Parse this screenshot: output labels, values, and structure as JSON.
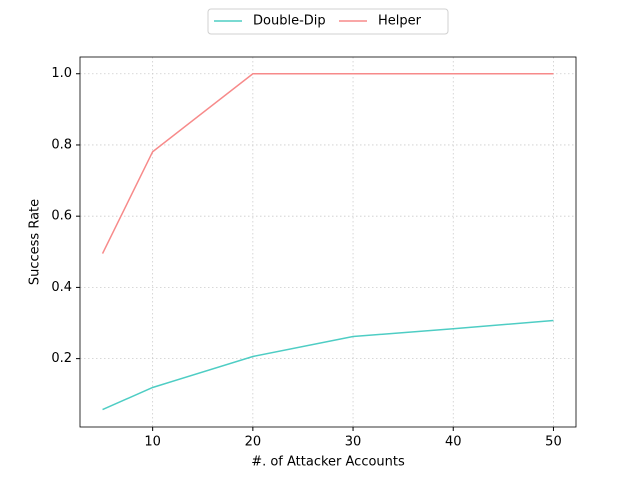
{
  "chart_data": {
    "type": "line",
    "x_label": "#. of Attacker Accounts",
    "y_label": "Success Rate",
    "x": [
      5,
      10,
      20,
      30,
      40,
      50
    ],
    "series": [
      {
        "name": "Double-Dip",
        "color": "#4ecdc4",
        "values": [
          0.057,
          0.119,
          0.206,
          0.262,
          0.284,
          0.307
        ]
      },
      {
        "name": "Helper",
        "color": "#f78a8a",
        "values": [
          0.495,
          0.781,
          1,
          1,
          1,
          1
        ]
      }
    ],
    "xlim": [
      2.75,
      52.25
    ],
    "xticks": [
      10,
      20,
      30,
      40,
      50
    ],
    "ylim": [
      0.008,
      1.047
    ],
    "yticks": [
      0.2,
      0.4,
      0.6,
      0.8,
      {
        "value": 1,
        "label": "1.0"
      }
    ],
    "grid": true,
    "legend": "top-center-outside"
  }
}
